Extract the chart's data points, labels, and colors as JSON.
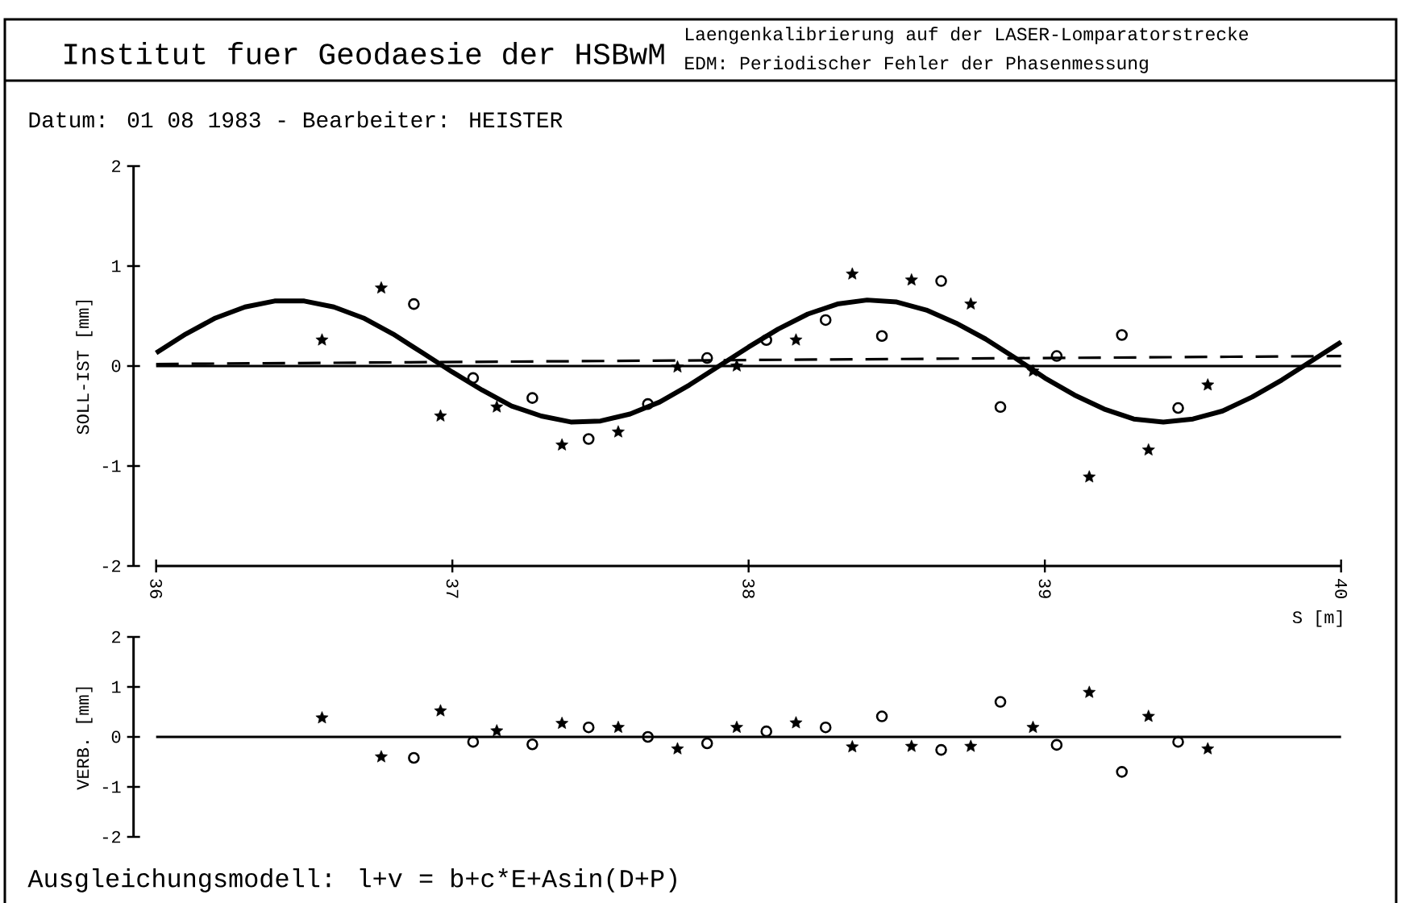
{
  "chart_data": [
    {
      "type": "scatter",
      "title": "Institut fuer Geodaesie der HSBwM",
      "subtitle": "Laengenkalibrierung auf der LASER-Lomparatorstrecke",
      "annotations": [
        "EDM: Periodischer Fehler der Phasenmessung",
        "Datum: 01 08 1983 - Bearbeiter: HEISTER"
      ],
      "xlabel": "S [m]",
      "ylabel": "SOLL-IST [mm]",
      "xlim": [
        36,
        40
      ],
      "xticks": [
        36,
        37,
        38,
        39,
        40
      ],
      "ylim": [
        -2,
        2
      ],
      "yticks": [
        -2,
        -1,
        0,
        1,
        2
      ],
      "grid": false,
      "ref_lines": [
        {
          "axis": "y",
          "value": 0,
          "color": "#000000"
        }
      ],
      "series": [
        {
          "type": "scatter",
          "marker": "star",
          "color": "#000000",
          "x": [
            36.56,
            36.76,
            36.96,
            37.15,
            37.37,
            37.56,
            37.76,
            37.96,
            38.16,
            38.35,
            38.55,
            38.75,
            38.96,
            39.15,
            39.35,
            39.55
          ],
          "values": [
            0.26,
            0.78,
            -0.5,
            -0.41,
            -0.79,
            -0.66,
            -0.01,
            0.0,
            0.26,
            0.92,
            0.86,
            0.62,
            -0.05,
            -1.11,
            -0.84,
            -0.19
          ]
        },
        {
          "marker": "circle",
          "color": "#000000",
          "x": [
            36.87,
            37.07,
            37.27,
            37.46,
            37.66,
            37.86,
            38.06,
            38.26,
            38.45,
            38.65,
            38.85,
            39.04,
            39.26,
            39.45
          ],
          "values": [
            0.62,
            -0.12,
            -0.32,
            -0.73,
            -0.38,
            0.08,
            0.26,
            0.46,
            0.3,
            0.85,
            -0.41,
            0.1,
            0.31,
            -0.42
          ]
        },
        {
          "type": "line",
          "line_style": "solid",
          "color": "#000000",
          "x": [
            36.0,
            36.1,
            36.2,
            36.3,
            36.4,
            36.5,
            36.6,
            36.7,
            36.8,
            36.9,
            37.0,
            37.1,
            37.2,
            37.3,
            37.4,
            37.5,
            37.6,
            37.7,
            37.8,
            37.9,
            38.0,
            38.1,
            38.2,
            38.3,
            38.4,
            38.5,
            38.6,
            38.7,
            38.8,
            38.9,
            39.0,
            39.1,
            39.2,
            39.3,
            39.4,
            39.5,
            39.6,
            39.7,
            39.8,
            39.9,
            40.0
          ],
          "values": [
            0.13,
            0.32,
            0.48,
            0.59,
            0.65,
            0.65,
            0.59,
            0.48,
            0.32,
            0.13,
            -0.06,
            -0.24,
            -0.4,
            -0.5,
            -0.56,
            -0.55,
            -0.48,
            -0.36,
            -0.19,
            0.0,
            0.19,
            0.37,
            0.52,
            0.62,
            0.66,
            0.64,
            0.56,
            0.43,
            0.27,
            0.08,
            -0.12,
            -0.29,
            -0.43,
            -0.53,
            -0.56,
            -0.53,
            -0.45,
            -0.31,
            -0.14,
            0.05,
            0.24
          ]
        },
        {
          "type": "line",
          "line_style": "dashed",
          "color": "#000000",
          "x": [
            36,
            40
          ],
          "values": [
            0.02,
            0.1
          ]
        }
      ]
    },
    {
      "type": "scatter",
      "ylabel": "VERB. [mm]",
      "xlim": [
        36,
        40
      ],
      "xticks": [
        36,
        37,
        38,
        39,
        40
      ],
      "ylim": [
        -2,
        2
      ],
      "yticks": [
        -2,
        -1,
        0,
        1,
        2
      ],
      "tick_labels": "y",
      "grid": false,
      "annotations": [
        "Ausgleichungsmodell:  l+v = b+c*E+Asin(D+P)"
      ],
      "ref_lines": [
        {
          "axis": "y",
          "value": 0,
          "color": "#000000"
        }
      ],
      "series": [
        {
          "type": "scatter",
          "marker": "star",
          "color": "#000000",
          "x": [
            36.56,
            36.76,
            36.96,
            37.15,
            37.37,
            37.56,
            37.76,
            37.96,
            38.16,
            38.35,
            38.55,
            38.75,
            38.96,
            39.15,
            39.35,
            39.55
          ],
          "values": [
            0.38,
            -0.4,
            0.52,
            0.12,
            0.27,
            0.19,
            -0.24,
            0.19,
            0.28,
            -0.2,
            -0.19,
            -0.19,
            0.19,
            0.89,
            0.41,
            -0.24
          ]
        },
        {
          "marker": "circle",
          "color": "#000000",
          "x": [
            36.87,
            37.07,
            37.27,
            37.46,
            37.66,
            37.86,
            38.06,
            38.26,
            38.45,
            38.65,
            38.85,
            39.04,
            39.26,
            39.45
          ],
          "values": [
            -0.42,
            -0.1,
            -0.15,
            0.19,
            0.0,
            -0.13,
            0.11,
            0.19,
            0.41,
            -0.26,
            0.7,
            -0.16,
            -0.7,
            -0.1
          ]
        }
      ]
    }
  ]
}
